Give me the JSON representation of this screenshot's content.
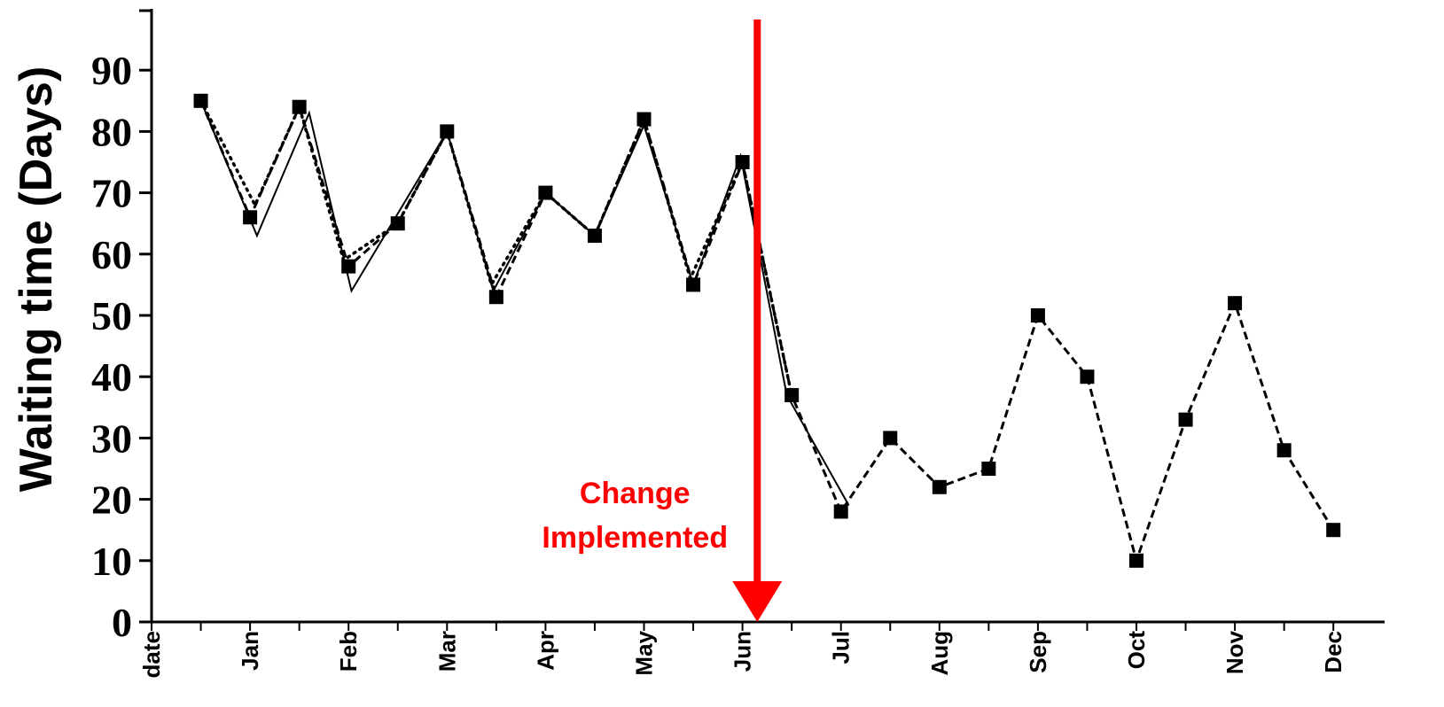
{
  "chart_data": {
    "type": "line",
    "title": "",
    "ylabel": "Waiting time (Days)",
    "xlabel": "",
    "ylim": [
      0,
      100
    ],
    "yticks": [
      0,
      10,
      20,
      30,
      40,
      50,
      60,
      70,
      80,
      90
    ],
    "x_tick_labels": [
      "date",
      "Jan",
      "Feb",
      "Mar",
      "Apr",
      "May",
      "Jun",
      "Jul",
      "Aug",
      "Sep",
      "Oct",
      "Nov",
      "Dec"
    ],
    "grid": false,
    "annotation": {
      "text_line1": "Change",
      "text_line2": "Implemented",
      "x": 6.15,
      "color": "#ff0000"
    },
    "series": [
      {
        "style": "markers + dashed",
        "color": "#000000",
        "x": [
          0.5,
          1,
          1.5,
          2,
          2.5,
          3,
          3.5,
          4,
          4.5,
          5,
          5.5,
          6,
          6.5,
          7,
          7.5,
          8,
          8.5,
          9,
          9.5,
          10,
          10.5,
          11,
          11.5,
          12
        ],
        "values": [
          85,
          66,
          84,
          58,
          65,
          80,
          53,
          70,
          63,
          82,
          55,
          75,
          37,
          18,
          30,
          22,
          25,
          50,
          40,
          10,
          33,
          52,
          28,
          15
        ]
      },
      {
        "style": "solid",
        "color": "#000000",
        "x": [
          0.5,
          1.07,
          1.6,
          2.03,
          3.0,
          3.47,
          4.0,
          4.5,
          5.0,
          5.5,
          5.98,
          6.45,
          7.08
        ],
        "values": [
          85,
          63,
          83,
          54,
          80,
          54,
          70,
          63,
          81,
          55,
          76,
          37,
          19
        ]
      },
      {
        "style": "dotted",
        "color": "#000000",
        "x": [
          0.5,
          1.05,
          1.5,
          1.95,
          2.5,
          3.0,
          3.45,
          4.0,
          4.5,
          5.0,
          5.47,
          6.0,
          6.5
        ],
        "values": [
          85,
          68,
          84,
          59,
          65,
          80,
          55,
          70,
          63,
          82,
          56,
          75,
          37
        ]
      }
    ]
  }
}
